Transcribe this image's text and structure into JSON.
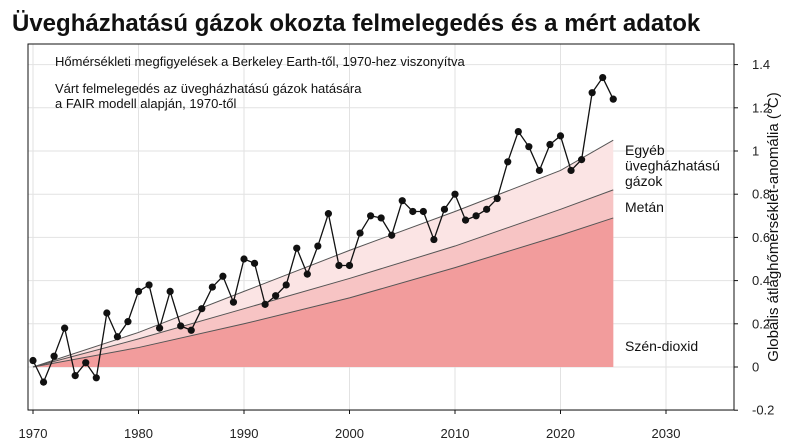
{
  "chart_data": {
    "type": "line",
    "title": "Üvegházhatású gázok okozta felmelegedés és a mért adatok",
    "ylabel": "Globális átlaghőmérséklet-anomália (°C)",
    "xlabel": "",
    "xlim": [
      1970,
      2035
    ],
    "ylim": [
      -0.2,
      1.5
    ],
    "x_ticks": [
      "1970",
      "1980",
      "1990",
      "2000",
      "2010",
      "2020",
      "2030"
    ],
    "y_ticks": [
      "-0.2",
      "0",
      "0.2",
      "0.4",
      "0.6",
      "0.8",
      "1",
      "1.2",
      "1.4"
    ],
    "grid": true,
    "annotations": [
      "Hőmérsékleti megfigyelések a Berkeley Earth-től, 1970-hez viszonyítva",
      "Várt felmelegedés az üvegházhatású gázok hatására",
      "a FAIR modell alapján, 1970-től"
    ],
    "stacked_layers": [
      {
        "label": "Szén-dioxid",
        "color": "#f29c9c",
        "x": [
          1970,
          1980,
          1990,
          2000,
          2010,
          2020,
          2025
        ],
        "y": [
          0.0,
          0.09,
          0.2,
          0.32,
          0.46,
          0.61,
          0.69
        ]
      },
      {
        "label": "Metán",
        "color": "#f7c4c4",
        "x": [
          1970,
          1980,
          1990,
          2000,
          2010,
          2020,
          2025
        ],
        "y": [
          0.0,
          0.13,
          0.27,
          0.41,
          0.56,
          0.73,
          0.82
        ]
      },
      {
        "label_lines": [
          "Egyéb",
          "üvegházhatású",
          "gázok"
        ],
        "color": "#fbe4e4",
        "x": [
          1970,
          1980,
          1990,
          2000,
          2010,
          2020,
          2025
        ],
        "y": [
          0.0,
          0.16,
          0.35,
          0.54,
          0.72,
          0.91,
          1.05
        ]
      }
    ],
    "series": [
      {
        "x": [
          1970,
          1971,
          1972,
          1973,
          1974,
          1975,
          1976,
          1977,
          1978,
          1979,
          1980,
          1981,
          1982,
          1983,
          1984,
          1985,
          1986,
          1987,
          1988,
          1989,
          1990,
          1991,
          1992,
          1993,
          1994,
          1995,
          1996,
          1997,
          1998,
          1999,
          2000,
          2001,
          2002,
          2003,
          2004,
          2005,
          2006,
          2007,
          2008,
          2009,
          2010,
          2011,
          2012,
          2013,
          2014,
          2015,
          2016,
          2017,
          2018,
          2019,
          2020,
          2021,
          2022,
          2023,
          2024,
          2025
        ],
        "values": [
          0.03,
          -0.07,
          0.05,
          0.18,
          -0.04,
          0.02,
          -0.05,
          0.25,
          0.14,
          0.21,
          0.35,
          0.38,
          0.18,
          0.35,
          0.19,
          0.17,
          0.27,
          0.37,
          0.42,
          0.3,
          0.5,
          0.48,
          0.29,
          0.33,
          0.38,
          0.55,
          0.43,
          0.56,
          0.71,
          0.47,
          0.47,
          0.62,
          0.7,
          0.69,
          0.61,
          0.77,
          0.72,
          0.72,
          0.59,
          0.73,
          0.8,
          0.68,
          0.7,
          0.73,
          0.78,
          0.95,
          1.09,
          1.02,
          0.91,
          1.03,
          1.07,
          0.91,
          0.96,
          1.27,
          1.34,
          1.24
        ],
        "color": "#111111"
      }
    ]
  }
}
